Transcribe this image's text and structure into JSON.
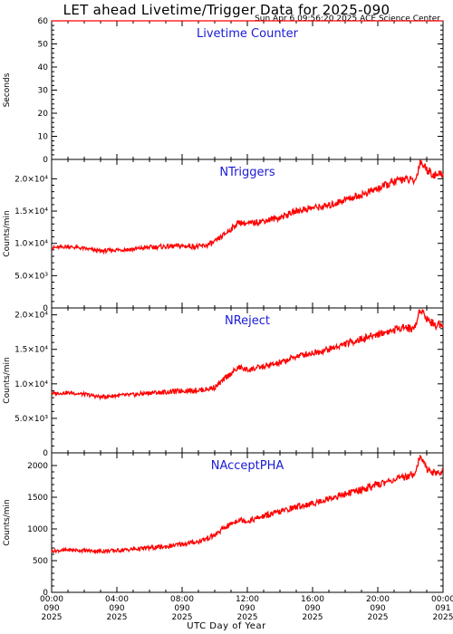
{
  "header": {
    "title": "LET ahead Livetime/Trigger Data for 2025-090",
    "timestamp": "Sun Apr  6 09:56:20 2025 ACE Science Center"
  },
  "colors": {
    "series": "#ff0000",
    "label": "#1a1ad6",
    "axis": "#000000"
  },
  "chart_data": [
    {
      "type": "line",
      "title": "Livetime Counter",
      "ylabel": "Seconds",
      "ylim": [
        0,
        60
      ],
      "yticks": [
        0,
        10,
        20,
        30,
        40,
        50,
        60
      ],
      "yticklabels": [
        "0",
        "10",
        "20",
        "30",
        "40",
        "50",
        "60"
      ],
      "x": [
        0,
        24
      ],
      "series": [
        {
          "values": [
            60,
            60
          ]
        }
      ]
    },
    {
      "type": "line",
      "title": "NTriggers",
      "ylabel": "Counts/min",
      "ylim": [
        0,
        23000
      ],
      "yticks": [
        0,
        5000,
        10000,
        15000,
        20000
      ],
      "yticklabels": [
        "0",
        "5.0×10³",
        "1.0×10⁴",
        "1.5×10⁴",
        "2.0×10⁴"
      ],
      "x": [
        0,
        1,
        2,
        3,
        4,
        5,
        6,
        7,
        8,
        9,
        9.5,
        10,
        10.5,
        11,
        11.5,
        12,
        13,
        14,
        15,
        16,
        17,
        18,
        19,
        20,
        21,
        21.5,
        22,
        22.3,
        22.6,
        23,
        23.5,
        24
      ],
      "series": [
        {
          "values": [
            9300,
            9500,
            9200,
            8800,
            9000,
            9100,
            9400,
            9500,
            9600,
            9500,
            9700,
            10200,
            11200,
            12200,
            13300,
            13000,
            13500,
            14000,
            15000,
            15500,
            15800,
            16800,
            17500,
            18500,
            19500,
            20000,
            19800,
            19600,
            22700,
            21500,
            20500,
            20800
          ]
        }
      ]
    },
    {
      "type": "line",
      "title": "NReject",
      "ylabel": "Counts/min",
      "ylim": [
        0,
        21000
      ],
      "yticks": [
        0,
        5000,
        10000,
        15000,
        20000
      ],
      "yticklabels": [
        "0",
        "5.0×10³",
        "1.0×10⁴",
        "1.5×10⁴",
        "2.0×10⁴"
      ],
      "x": [
        0,
        1,
        2,
        3,
        4,
        5,
        6,
        7,
        8,
        9,
        9.5,
        10,
        10.5,
        11,
        11.5,
        12,
        13,
        14,
        15,
        16,
        17,
        18,
        19,
        20,
        21,
        21.5,
        22,
        22.3,
        22.6,
        23,
        23.5,
        24
      ],
      "series": [
        {
          "values": [
            8600,
            8700,
            8500,
            8100,
            8300,
            8400,
            8700,
            8800,
            9000,
            9100,
            9200,
            9500,
            10500,
            11500,
            12400,
            12000,
            12500,
            13000,
            14000,
            14500,
            15000,
            15800,
            16500,
            17200,
            17800,
            18300,
            18000,
            18200,
            21000,
            19500,
            18500,
            18800
          ]
        }
      ]
    },
    {
      "type": "line",
      "title": "NAcceptPHA",
      "ylabel": "Counts/min",
      "ylim": [
        0,
        2200
      ],
      "yticks": [
        0,
        500,
        1000,
        1500,
        2000
      ],
      "yticklabels": [
        "0",
        "500",
        "1000",
        "1500",
        "2000"
      ],
      "x": [
        0,
        1,
        2,
        3,
        4,
        5,
        6,
        7,
        8,
        9,
        9.5,
        10,
        10.5,
        11,
        11.5,
        12,
        13,
        14,
        15,
        16,
        17,
        18,
        19,
        20,
        21,
        21.5,
        22,
        22.3,
        22.6,
        23,
        23.5,
        24
      ],
      "series": [
        {
          "values": [
            650,
            670,
            660,
            650,
            660,
            680,
            700,
            720,
            760,
            800,
            850,
            900,
            1000,
            1080,
            1150,
            1120,
            1200,
            1270,
            1350,
            1400,
            1480,
            1550,
            1620,
            1700,
            1780,
            1800,
            1850,
            1900,
            2150,
            1950,
            1880,
            1900
          ]
        }
      ]
    }
  ],
  "x_axis": {
    "xlabel": "UTC Day of Year",
    "ticks": [
      {
        "time": "00:00",
        "doy": "090",
        "year": "2025"
      },
      {
        "time": "04:00",
        "doy": "090",
        "year": "2025"
      },
      {
        "time": "08:00",
        "doy": "090",
        "year": "2025"
      },
      {
        "time": "12:00",
        "doy": "090",
        "year": "2025"
      },
      {
        "time": "16:00",
        "doy": "090",
        "year": "2025"
      },
      {
        "time": "20:00",
        "doy": "090",
        "year": "2025"
      },
      {
        "time": "00:00",
        "doy": "091",
        "year": "2025"
      }
    ]
  }
}
